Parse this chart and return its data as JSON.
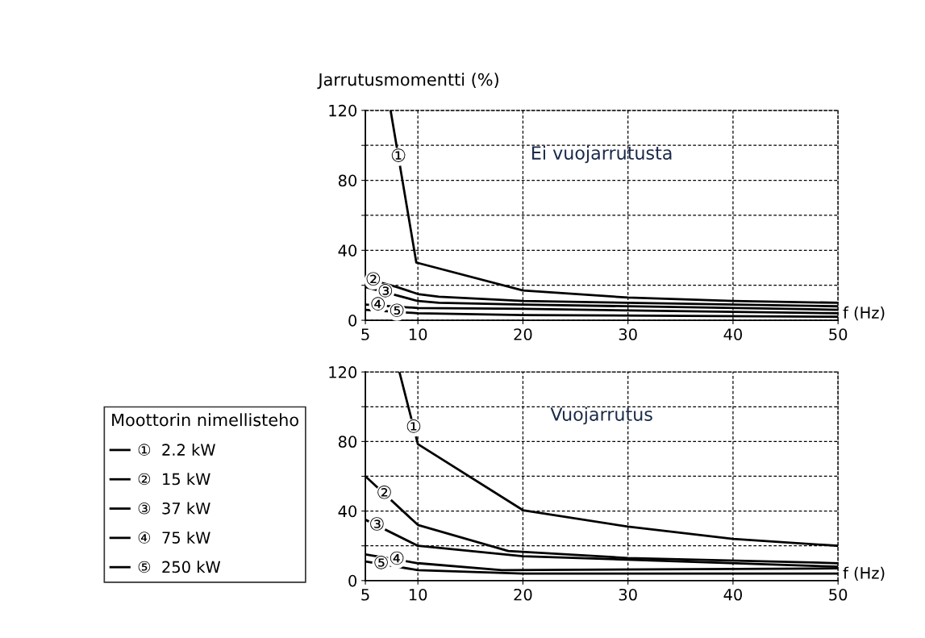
{
  "chart_data": [
    {
      "type": "line",
      "ylabel": "Jarrutusmomentti (%)",
      "xlabel": "f (Hz)",
      "xlim": [
        5,
        50
      ],
      "xticks": [
        5,
        10,
        20,
        30,
        40,
        50
      ],
      "ylim": [
        0,
        120
      ],
      "yticks": [
        0,
        {
          "value": 20,
          "label": null
        },
        40,
        {
          "value": 60,
          "label": null
        },
        80,
        {
          "value": 100,
          "label": null
        },
        120
      ],
      "grid": true,
      "legend": false,
      "line_style": "solid",
      "marker": "none",
      "annotations": [
        "Ei vuojarrutusta",
        {
          "text": "①",
          "x": 8.15,
          "y": 93.4
        },
        {
          "text": "②",
          "x": 5.75,
          "y": 22.75
        },
        {
          "text": "③",
          "x": 6.9,
          "y": 16
        },
        {
          "text": "④",
          "x": 6.2,
          "y": 8.5
        },
        {
          "text": "⑤",
          "x": 8,
          "y": 4.8
        }
      ],
      "series": [
        {
          "color": "#000000",
          "x": [
            7.4,
            9.85,
            20,
            30,
            40,
            50
          ],
          "values": [
            120,
            33,
            17,
            13,
            11,
            10
          ]
        },
        {
          "color": "#000000",
          "x": [
            5,
            8,
            10,
            12,
            20,
            50
          ],
          "values": [
            24,
            19,
            15,
            13.5,
            11,
            8
          ]
        },
        {
          "color": "#000000",
          "x": [
            5,
            10,
            12,
            20,
            50
          ],
          "values": [
            19,
            11,
            10,
            9,
            6
          ]
        },
        {
          "color": "#000000",
          "x": [
            5,
            10,
            20,
            50
          ],
          "values": [
            9,
            7,
            6.5,
            4
          ]
        },
        {
          "color": "#000000",
          "x": [
            5,
            10,
            20,
            50
          ],
          "values": [
            6,
            4,
            3,
            2
          ]
        }
      ]
    },
    {
      "type": "line",
      "xlabel": "f (Hz)",
      "xlim": [
        5,
        50
      ],
      "xticks": [
        5,
        10,
        20,
        30,
        40,
        50
      ],
      "ylim": [
        0,
        120
      ],
      "yticks": [
        0,
        {
          "value": 20,
          "label": null
        },
        40,
        {
          "value": 60,
          "label": null
        },
        80,
        {
          "value": 100,
          "label": null
        },
        120
      ],
      "grid": true,
      "legend": "left",
      "legend_title": "Moottorin nimellisteho",
      "line_style": "solid",
      "marker": "none",
      "annotations": [
        "Vuojarrutus",
        {
          "text": "①",
          "x": 9.6,
          "y": 87.9
        },
        {
          "text": "②",
          "x": 6.8,
          "y": 49.9
        },
        {
          "text": "③",
          "x": 6.1,
          "y": 31.7
        },
        {
          "text": "④",
          "x": 8,
          "y": 12
        },
        {
          "text": "⑤",
          "x": 6.5,
          "y": 9.5
        }
      ],
      "series": [
        {
          "name": "①  2.2 kW",
          "color": "#000000",
          "x": [
            8.24,
            10,
            20,
            30,
            40,
            50
          ],
          "values": [
            120,
            78.5,
            40.5,
            31,
            24,
            20
          ]
        },
        {
          "name": "②  15 kW",
          "color": "#000000",
          "x": [
            5,
            10,
            18.6,
            30,
            50
          ],
          "values": [
            60,
            32,
            17,
            13,
            10
          ]
        },
        {
          "name": "③  37 kW",
          "color": "#000000",
          "x": [
            5,
            10,
            20,
            50
          ],
          "values": [
            35,
            20,
            14,
            8
          ]
        },
        {
          "name": "④  75 kW",
          "color": "#000000",
          "x": [
            5,
            10,
            18,
            50
          ],
          "values": [
            15,
            10,
            6,
            7
          ]
        },
        {
          "name": "⑤  250 kW",
          "color": "#000000",
          "x": [
            5,
            10,
            20,
            50
          ],
          "values": [
            11,
            6,
            4,
            4
          ]
        }
      ]
    }
  ]
}
